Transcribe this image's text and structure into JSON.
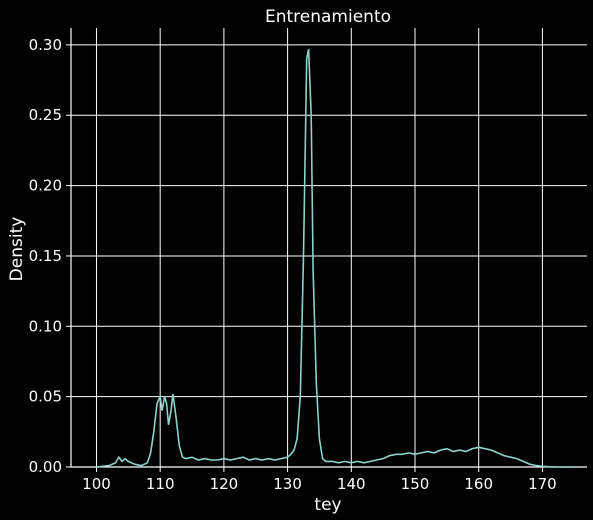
{
  "chart_data": {
    "type": "line",
    "title": "Entrenamiento",
    "xlabel": "tey",
    "ylabel": "Density",
    "xlim": [
      96,
      177
    ],
    "ylim": [
      0,
      0.312
    ],
    "x_ticks": [
      100,
      110,
      120,
      130,
      140,
      150,
      160,
      170
    ],
    "y_ticks": [
      0.0,
      0.05,
      0.1,
      0.15,
      0.2,
      0.25,
      0.3
    ],
    "x_tick_labels": [
      "100",
      "110",
      "120",
      "130",
      "140",
      "150",
      "160",
      "170"
    ],
    "y_tick_labels": [
      "0.00",
      "0.05",
      "0.10",
      "0.15",
      "0.20",
      "0.25",
      "0.30"
    ],
    "grid": true,
    "colors": {
      "background": "#000000",
      "line": "#8dd3c7",
      "grid": "#ffffff",
      "text": "#ffffff"
    },
    "series": [
      {
        "x": [
          100,
          102,
          103,
          103.5,
          104,
          104.5,
          105,
          105.5,
          106,
          107,
          108,
          108.5,
          109,
          109.5,
          110,
          110.3,
          110.7,
          111,
          111.3,
          111.7,
          112,
          112.5,
          113,
          113.5,
          114,
          115,
          116,
          117,
          118,
          119,
          120,
          121,
          122,
          123,
          124,
          125,
          126,
          127,
          128,
          129,
          130,
          130.5,
          131,
          131.5,
          132,
          132.5,
          133,
          133.3,
          133.7,
          134,
          134.5,
          135,
          135.5,
          136,
          137,
          138,
          139,
          140,
          141,
          142,
          143,
          144,
          145,
          146,
          147,
          148,
          149,
          150,
          151,
          152,
          153,
          154,
          155,
          156,
          157,
          158,
          159,
          160,
          161,
          162,
          163,
          164,
          165,
          166,
          167,
          168,
          169,
          170,
          171,
          172,
          175
        ],
        "y": [
          0.0,
          0.001,
          0.003,
          0.007,
          0.004,
          0.006,
          0.004,
          0.003,
          0.002,
          0.001,
          0.003,
          0.01,
          0.025,
          0.045,
          0.05,
          0.04,
          0.05,
          0.045,
          0.03,
          0.04,
          0.052,
          0.035,
          0.015,
          0.007,
          0.006,
          0.007,
          0.005,
          0.006,
          0.005,
          0.005,
          0.006,
          0.005,
          0.006,
          0.007,
          0.005,
          0.006,
          0.005,
          0.006,
          0.005,
          0.006,
          0.007,
          0.009,
          0.012,
          0.02,
          0.05,
          0.15,
          0.29,
          0.297,
          0.25,
          0.14,
          0.06,
          0.02,
          0.006,
          0.004,
          0.004,
          0.003,
          0.004,
          0.003,
          0.004,
          0.003,
          0.004,
          0.005,
          0.006,
          0.008,
          0.009,
          0.009,
          0.01,
          0.009,
          0.01,
          0.011,
          0.01,
          0.012,
          0.013,
          0.011,
          0.012,
          0.011,
          0.013,
          0.014,
          0.013,
          0.012,
          0.01,
          0.008,
          0.007,
          0.006,
          0.004,
          0.002,
          0.001,
          0.0005,
          0.0002,
          0.0001,
          0.0
        ]
      }
    ]
  }
}
